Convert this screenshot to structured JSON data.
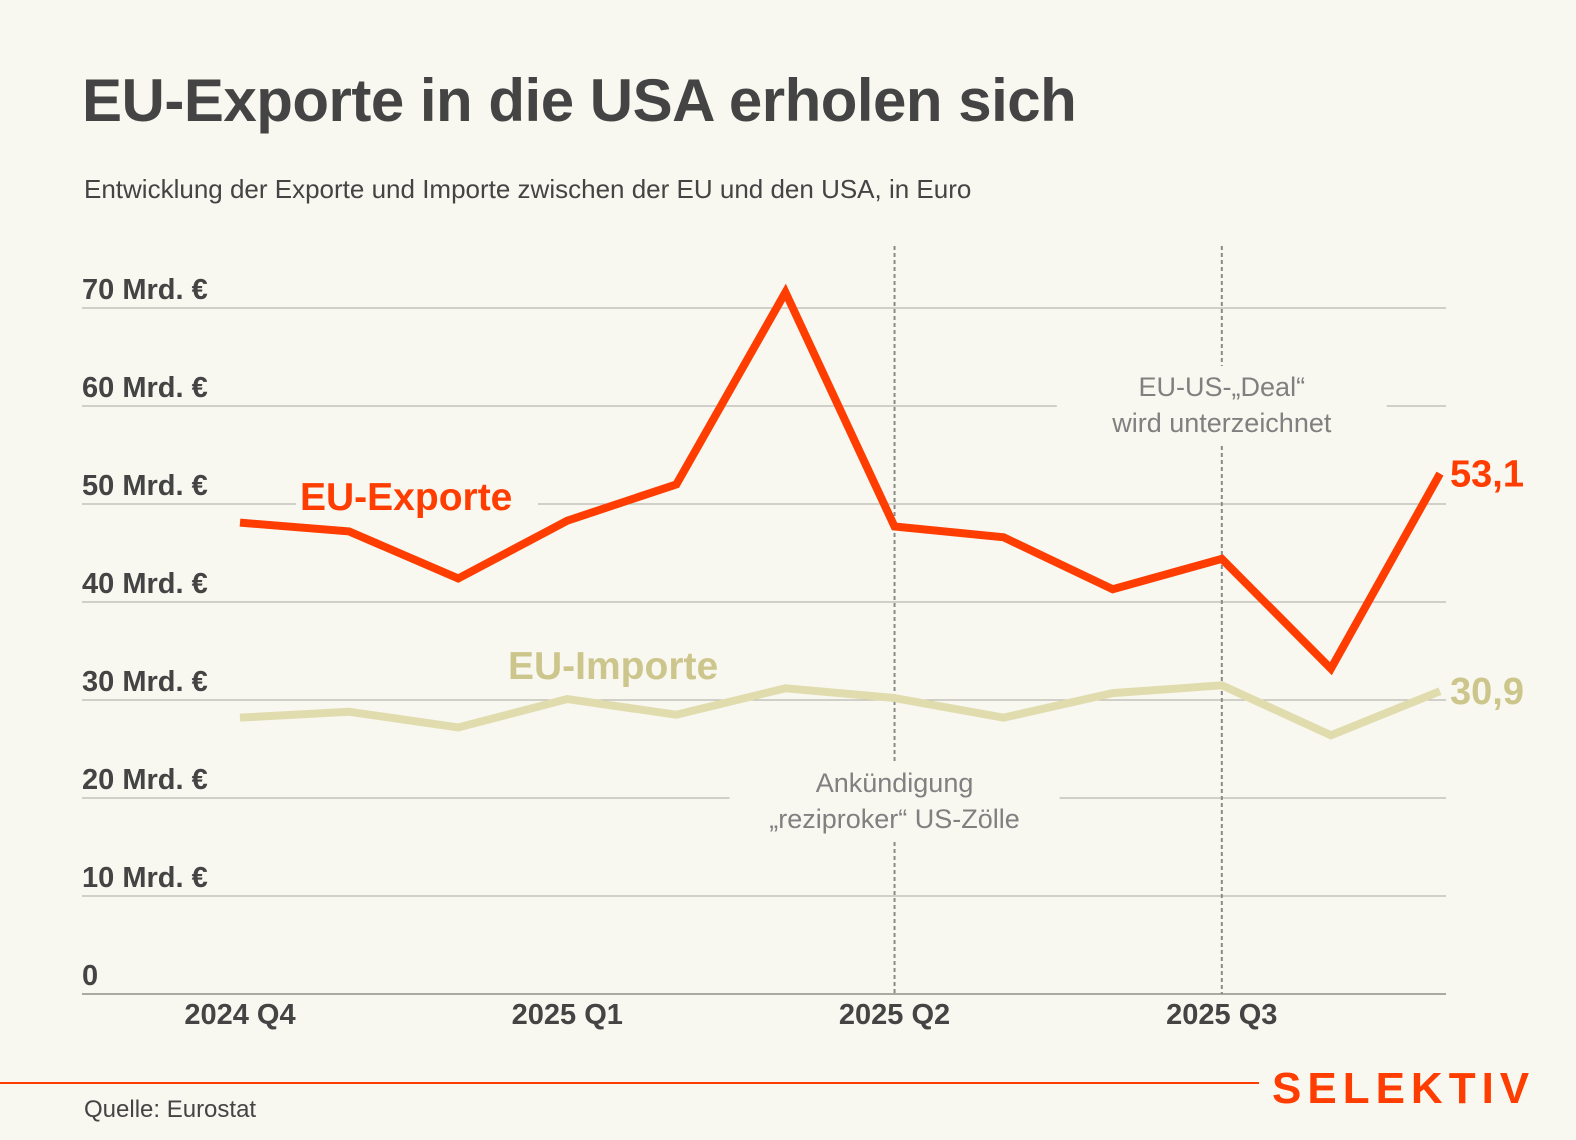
{
  "header": {
    "title": "EU-Exporte in die USA erholen sich",
    "subtitle": "Entwicklung der Exporte und Importe zwischen der EU und den USA, in Euro"
  },
  "chart_data": {
    "type": "line",
    "title": "EU-Exporte in die USA erholen sich",
    "subtitle": "Entwicklung der Exporte und Importe zwischen der EU und den USA, in Euro",
    "xlabel": "",
    "ylabel": "",
    "x_tick_labels": [
      {
        "index": 0,
        "label": "2024 Q4"
      },
      {
        "index": 3,
        "label": "2025 Q1"
      },
      {
        "index": 6,
        "label": "2025 Q2"
      },
      {
        "index": 9,
        "label": "2025 Q3"
      }
    ],
    "x_count": 12,
    "y_ticks": [
      {
        "value": 0,
        "label": "0"
      },
      {
        "value": 10,
        "label": "10 Mrd. €"
      },
      {
        "value": 20,
        "label": "20 Mrd. €"
      },
      {
        "value": 30,
        "label": "30 Mrd. €"
      },
      {
        "value": 40,
        "label": "40 Mrd. €"
      },
      {
        "value": 50,
        "label": "50 Mrd. €"
      },
      {
        "value": 60,
        "label": "60 Mrd. €"
      },
      {
        "value": 70,
        "label": "70 Mrd. €"
      }
    ],
    "ylim": [
      0,
      70
    ],
    "grid": true,
    "unit": "Mrd. €",
    "series": [
      {
        "name": "EU-Exporte",
        "color": "#ff3d00",
        "values": [
          48.1,
          47.2,
          42.4,
          48.3,
          52.0,
          71.6,
          47.7,
          46.6,
          41.3,
          44.4,
          33.2,
          53.1
        ],
        "end_label": "53,1"
      },
      {
        "name": "EU-Importe",
        "color": "#e1dcae",
        "label_color": "#cdc68c",
        "values": [
          28.2,
          28.8,
          27.2,
          30.1,
          28.5,
          31.2,
          30.2,
          28.2,
          30.7,
          31.5,
          26.4,
          30.9
        ],
        "end_label": "30,9"
      }
    ],
    "annotations": [
      {
        "index": 6,
        "lines": [
          "Ankündigung",
          "„reziproker“ US-Zölle"
        ]
      },
      {
        "index": 9,
        "lines": [
          "EU-US-„Deal“",
          "wird unterzeichnet"
        ]
      }
    ]
  },
  "footer": {
    "source": "Quelle: Eurostat",
    "logo": "SELEKTIV",
    "accent_color": "#ff3d00"
  }
}
